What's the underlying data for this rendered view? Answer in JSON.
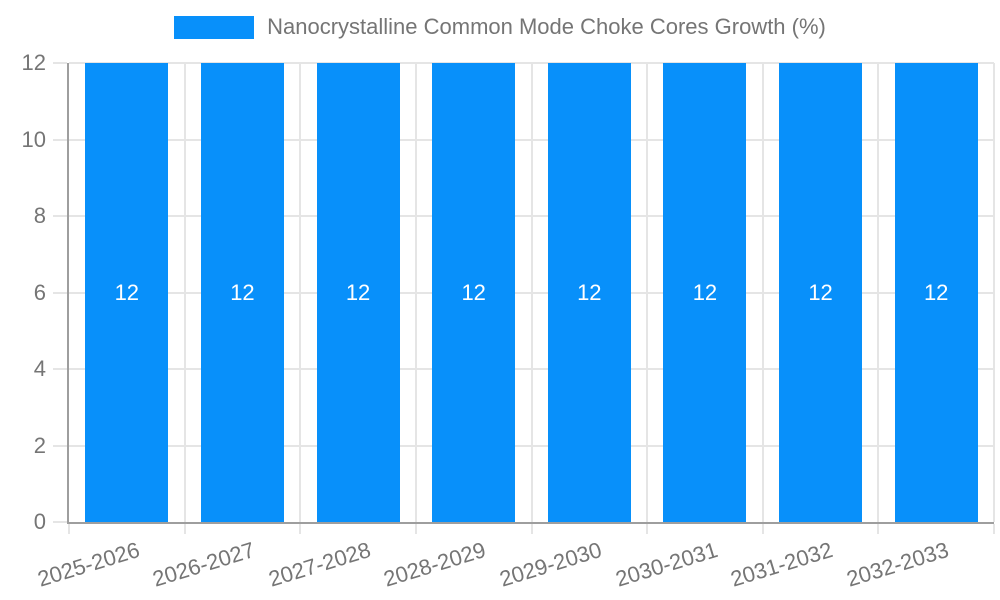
{
  "legend": {
    "items": [
      {
        "label": "Nanocrystalline Common Mode Choke Cores Growth (%)",
        "color": "#0890fa"
      }
    ],
    "position": "top"
  },
  "chart_data": {
    "type": "bar",
    "title": "Nanocrystalline Common Mode Choke Cores Growth (%)",
    "categories": [
      "2025-2026",
      "2026-2027",
      "2027-2028",
      "2028-2029",
      "2029-2030",
      "2030-2031",
      "2031-2032",
      "2032-2033"
    ],
    "series": [
      {
        "name": "Nanocrystalline Common Mode Choke Cores Growth (%)",
        "values": [
          12,
          12,
          12,
          12,
          12,
          12,
          12,
          12
        ],
        "color": "#0890fa"
      }
    ],
    "bar_labels": [
      "12",
      "12",
      "12",
      "12",
      "12",
      "12",
      "12",
      "12"
    ],
    "xlabel": "",
    "ylabel": "",
    "ylim": [
      0,
      12
    ],
    "yticks": [
      0,
      2,
      4,
      6,
      8,
      10,
      12
    ],
    "grid": "on",
    "legend_position": "top"
  },
  "colors": {
    "bar": "#0890fa",
    "bar_label": "#ffffff",
    "axis_line": "#9e9e9e",
    "grid_line": "#e5e5e5",
    "tick_text": "#757575",
    "background": "#ffffff"
  }
}
